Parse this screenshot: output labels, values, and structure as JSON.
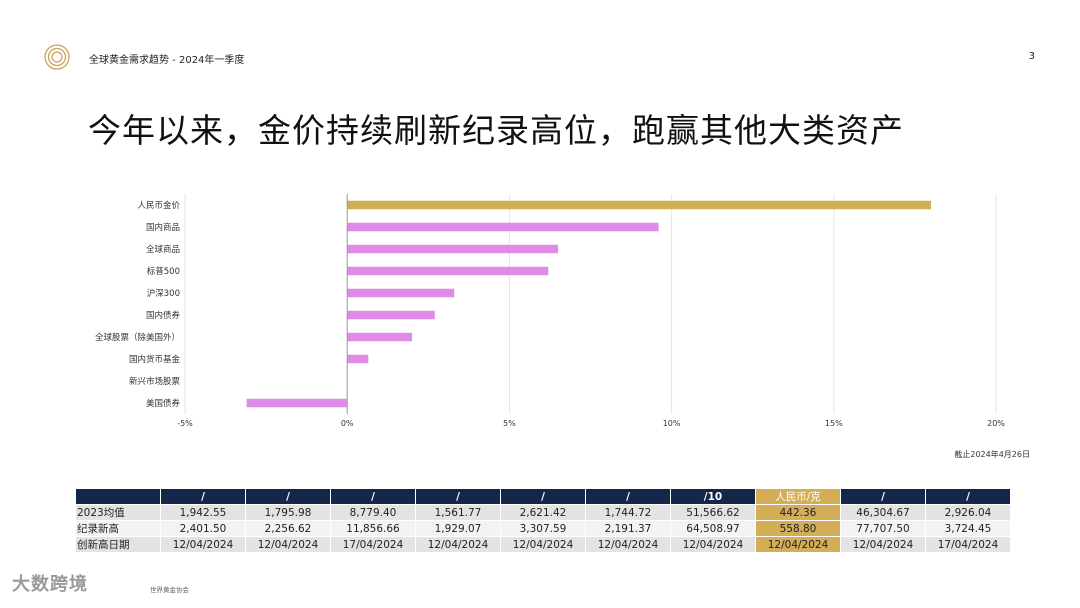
{
  "header": {
    "title": "全球黄金需求趋势 - 2024年一季度",
    "page_number": "3"
  },
  "main_title": "今年以来，金价持续刷新纪录高位，跑赢其他大类资产",
  "colors": {
    "gold": "#d4ad57",
    "purple": "#e08be8",
    "navy": "#15264b"
  },
  "chart_data": {
    "type": "bar",
    "orientation": "horizontal",
    "categories": [
      "人民币金价",
      "国内商品",
      "全球商品",
      "标普500",
      "沪深300",
      "国内债券",
      "全球股票（除美国外）",
      "国内货币基金",
      "新兴市场股票",
      "美国债券"
    ],
    "values": [
      18.0,
      9.6,
      6.5,
      6.2,
      3.3,
      2.7,
      2.0,
      0.65,
      0.0,
      -3.1
    ],
    "highlight_index": 0,
    "xlim": [
      -5,
      20
    ],
    "xticks": [
      -5,
      0,
      5,
      10,
      15,
      20
    ],
    "xtick_labels": [
      "-5%",
      "0%",
      "5%",
      "10%",
      "15%",
      "20%"
    ],
    "grid": true
  },
  "source_note": "截止2024年4月26日",
  "table": {
    "headers": [
      "",
      "/",
      "/",
      "/",
      "/",
      "/",
      "/",
      "/10",
      "人民币/克",
      "/",
      "/"
    ],
    "highlight_col": 8,
    "rows": [
      [
        "2023均值",
        "1,942.55",
        "1,795.98",
        "8,779.40",
        "1,561.77",
        "2,621.42",
        "1,744.72",
        "51,566.62",
        "442.36",
        "46,304.67",
        "2,926.04"
      ],
      [
        "纪录新高",
        "2,401.50",
        "2,256.62",
        "11,856.66",
        "1,929.07",
        "3,307.59",
        "2,191.37",
        "64,508.97",
        "558.80",
        "77,707.50",
        "3,724.45"
      ],
      [
        "创新高日期",
        "12/04/2024",
        "12/04/2024",
        "17/04/2024",
        "12/04/2024",
        "12/04/2024",
        "12/04/2024",
        "12/04/2024",
        "12/04/2024",
        "12/04/2024",
        "17/04/2024"
      ]
    ]
  },
  "footer": {
    "watermark": "大数跨境",
    "note": "世界黄金协会"
  }
}
